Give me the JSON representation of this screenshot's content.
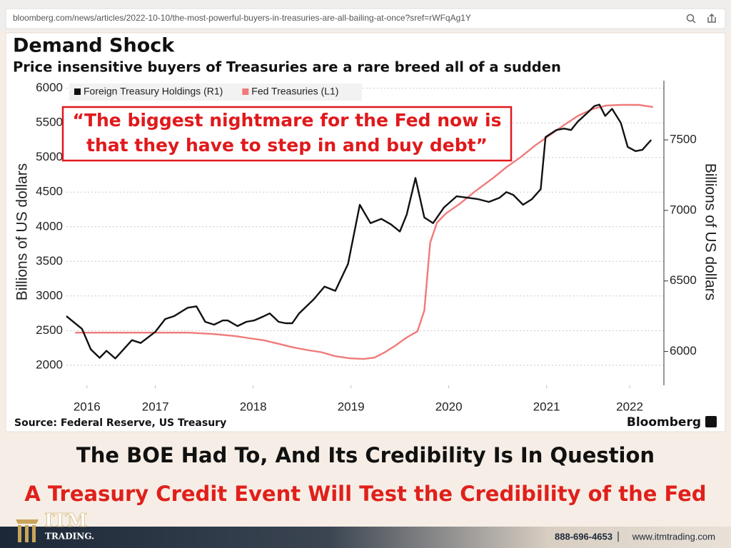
{
  "browser": {
    "url": "bloomberg.com/news/articles/2022-10-10/the-most-powerful-buyers-in-treasuries-are-all-bailing-at-once?sref=rWFqAg1Y"
  },
  "chart_data": {
    "type": "line",
    "title": "Demand Shock",
    "subtitle": "Price insensitive buyers of Treasuries are a rare breed all of a sudden",
    "annotation": [
      "“The biggest nightmare for the Fed now is",
      "that they have to step in and buy debt”"
    ],
    "y_label": "Billions of US dollars",
    "y2_label": "Billions of US dollars",
    "source": "Source: Federal Reserve, US Treasury",
    "brand": "Bloomberg",
    "legend": "top-left",
    "grid": true,
    "xlim": [
      2016.59,
      2022.7
    ],
    "xticks": [
      {
        "value": 2016.8,
        "label": "2016"
      },
      {
        "value": 2017.5,
        "label": "2017"
      },
      {
        "value": 2018.5,
        "label": "2018"
      },
      {
        "value": 2019.5,
        "label": "2019"
      },
      {
        "value": 2020.5,
        "label": "2020"
      },
      {
        "value": 2021.5,
        "label": "2021"
      },
      {
        "value": 2022.35,
        "label": "2022"
      }
    ],
    "ylim": [
      1710,
      6110
    ],
    "yticks": [
      2000,
      2500,
      3000,
      3500,
      4000,
      4500,
      5000,
      5500,
      6000
    ],
    "y2lim": [
      5760,
      7920
    ],
    "y2ticks": [
      6000,
      6500,
      7000,
      7500
    ],
    "series": [
      {
        "name": "Foreign Treasury Holdings (R1)",
        "color": "#111111",
        "axis": "y2",
        "x": [
          2016.59,
          2016.75,
          2016.84,
          2016.93,
          2017.0,
          2017.09,
          2017.26,
          2017.35,
          2017.5,
          2017.6,
          2017.69,
          2017.83,
          2017.92,
          2018.01,
          2018.1,
          2018.19,
          2018.24,
          2018.34,
          2018.43,
          2018.51,
          2018.61,
          2018.67,
          2018.76,
          2018.83,
          2018.9,
          2018.97,
          2019.12,
          2019.23,
          2019.34,
          2019.47,
          2019.59,
          2019.7,
          2019.81,
          2019.91,
          2020.0,
          2020.07,
          2020.16,
          2020.25,
          2020.34,
          2020.45,
          2020.58,
          2020.69,
          2020.8,
          2020.91,
          2021.02,
          2021.09,
          2021.16,
          2021.26,
          2021.35,
          2021.44,
          2021.49,
          2021.6,
          2021.68,
          2021.75,
          2021.82,
          2021.9,
          2021.99,
          2022.04,
          2022.1,
          2022.17,
          2022.26,
          2022.33,
          2022.41,
          2022.48,
          2022.57
        ],
        "values": [
          6250,
          6160,
          6015,
          5955,
          6005,
          5950,
          6080,
          6060,
          6140,
          6230,
          6250,
          6310,
          6320,
          6210,
          6190,
          6220,
          6220,
          6180,
          6210,
          6220,
          6250,
          6270,
          6210,
          6200,
          6200,
          6270,
          6370,
          6460,
          6430,
          6620,
          7040,
          6910,
          6940,
          6900,
          6850,
          6970,
          7230,
          6950,
          6910,
          7020,
          7100,
          7090,
          7080,
          7060,
          7090,
          7130,
          7110,
          7040,
          7080,
          7150,
          7520,
          7570,
          7580,
          7570,
          7630,
          7680,
          7740,
          7750,
          7670,
          7720,
          7620,
          7450,
          7420,
          7430,
          7500
        ]
      },
      {
        "name": "Fed Treasuries (L1)",
        "color": "#f07a7a",
        "axis": "y",
        "x": [
          2016.68,
          2017.0,
          2017.37,
          2017.84,
          2018.1,
          2018.32,
          2018.46,
          2018.61,
          2018.76,
          2018.9,
          2019.05,
          2019.19,
          2019.34,
          2019.49,
          2019.63,
          2019.74,
          2019.85,
          2019.96,
          2020.07,
          2020.18,
          2020.25,
          2020.31,
          2020.38,
          2020.47,
          2020.62,
          2020.76,
          2020.95,
          2021.09,
          2021.24,
          2021.38,
          2021.53,
          2021.68,
          2021.82,
          2021.97,
          2022.11,
          2022.26,
          2022.44,
          2022.59
        ],
        "values": [
          2470,
          2470,
          2470,
          2470,
          2450,
          2420,
          2390,
          2360,
          2310,
          2260,
          2220,
          2190,
          2130,
          2100,
          2090,
          2110,
          2190,
          2290,
          2400,
          2490,
          2790,
          3770,
          4060,
          4190,
          4340,
          4500,
          4700,
          4860,
          5010,
          5170,
          5320,
          5470,
          5600,
          5700,
          5750,
          5760,
          5760,
          5730
        ]
      }
    ]
  },
  "headlines": [
    "The BOE Had To, And Its Credibility Is In Question",
    "A Treasury Credit Event Will Test the Credibility of the Fed"
  ],
  "footer": {
    "logo": "ITM",
    "logo_sub": "TRADING.",
    "phone": "888-696-4653",
    "separator": "|",
    "website": "www.itmtrading.com"
  }
}
